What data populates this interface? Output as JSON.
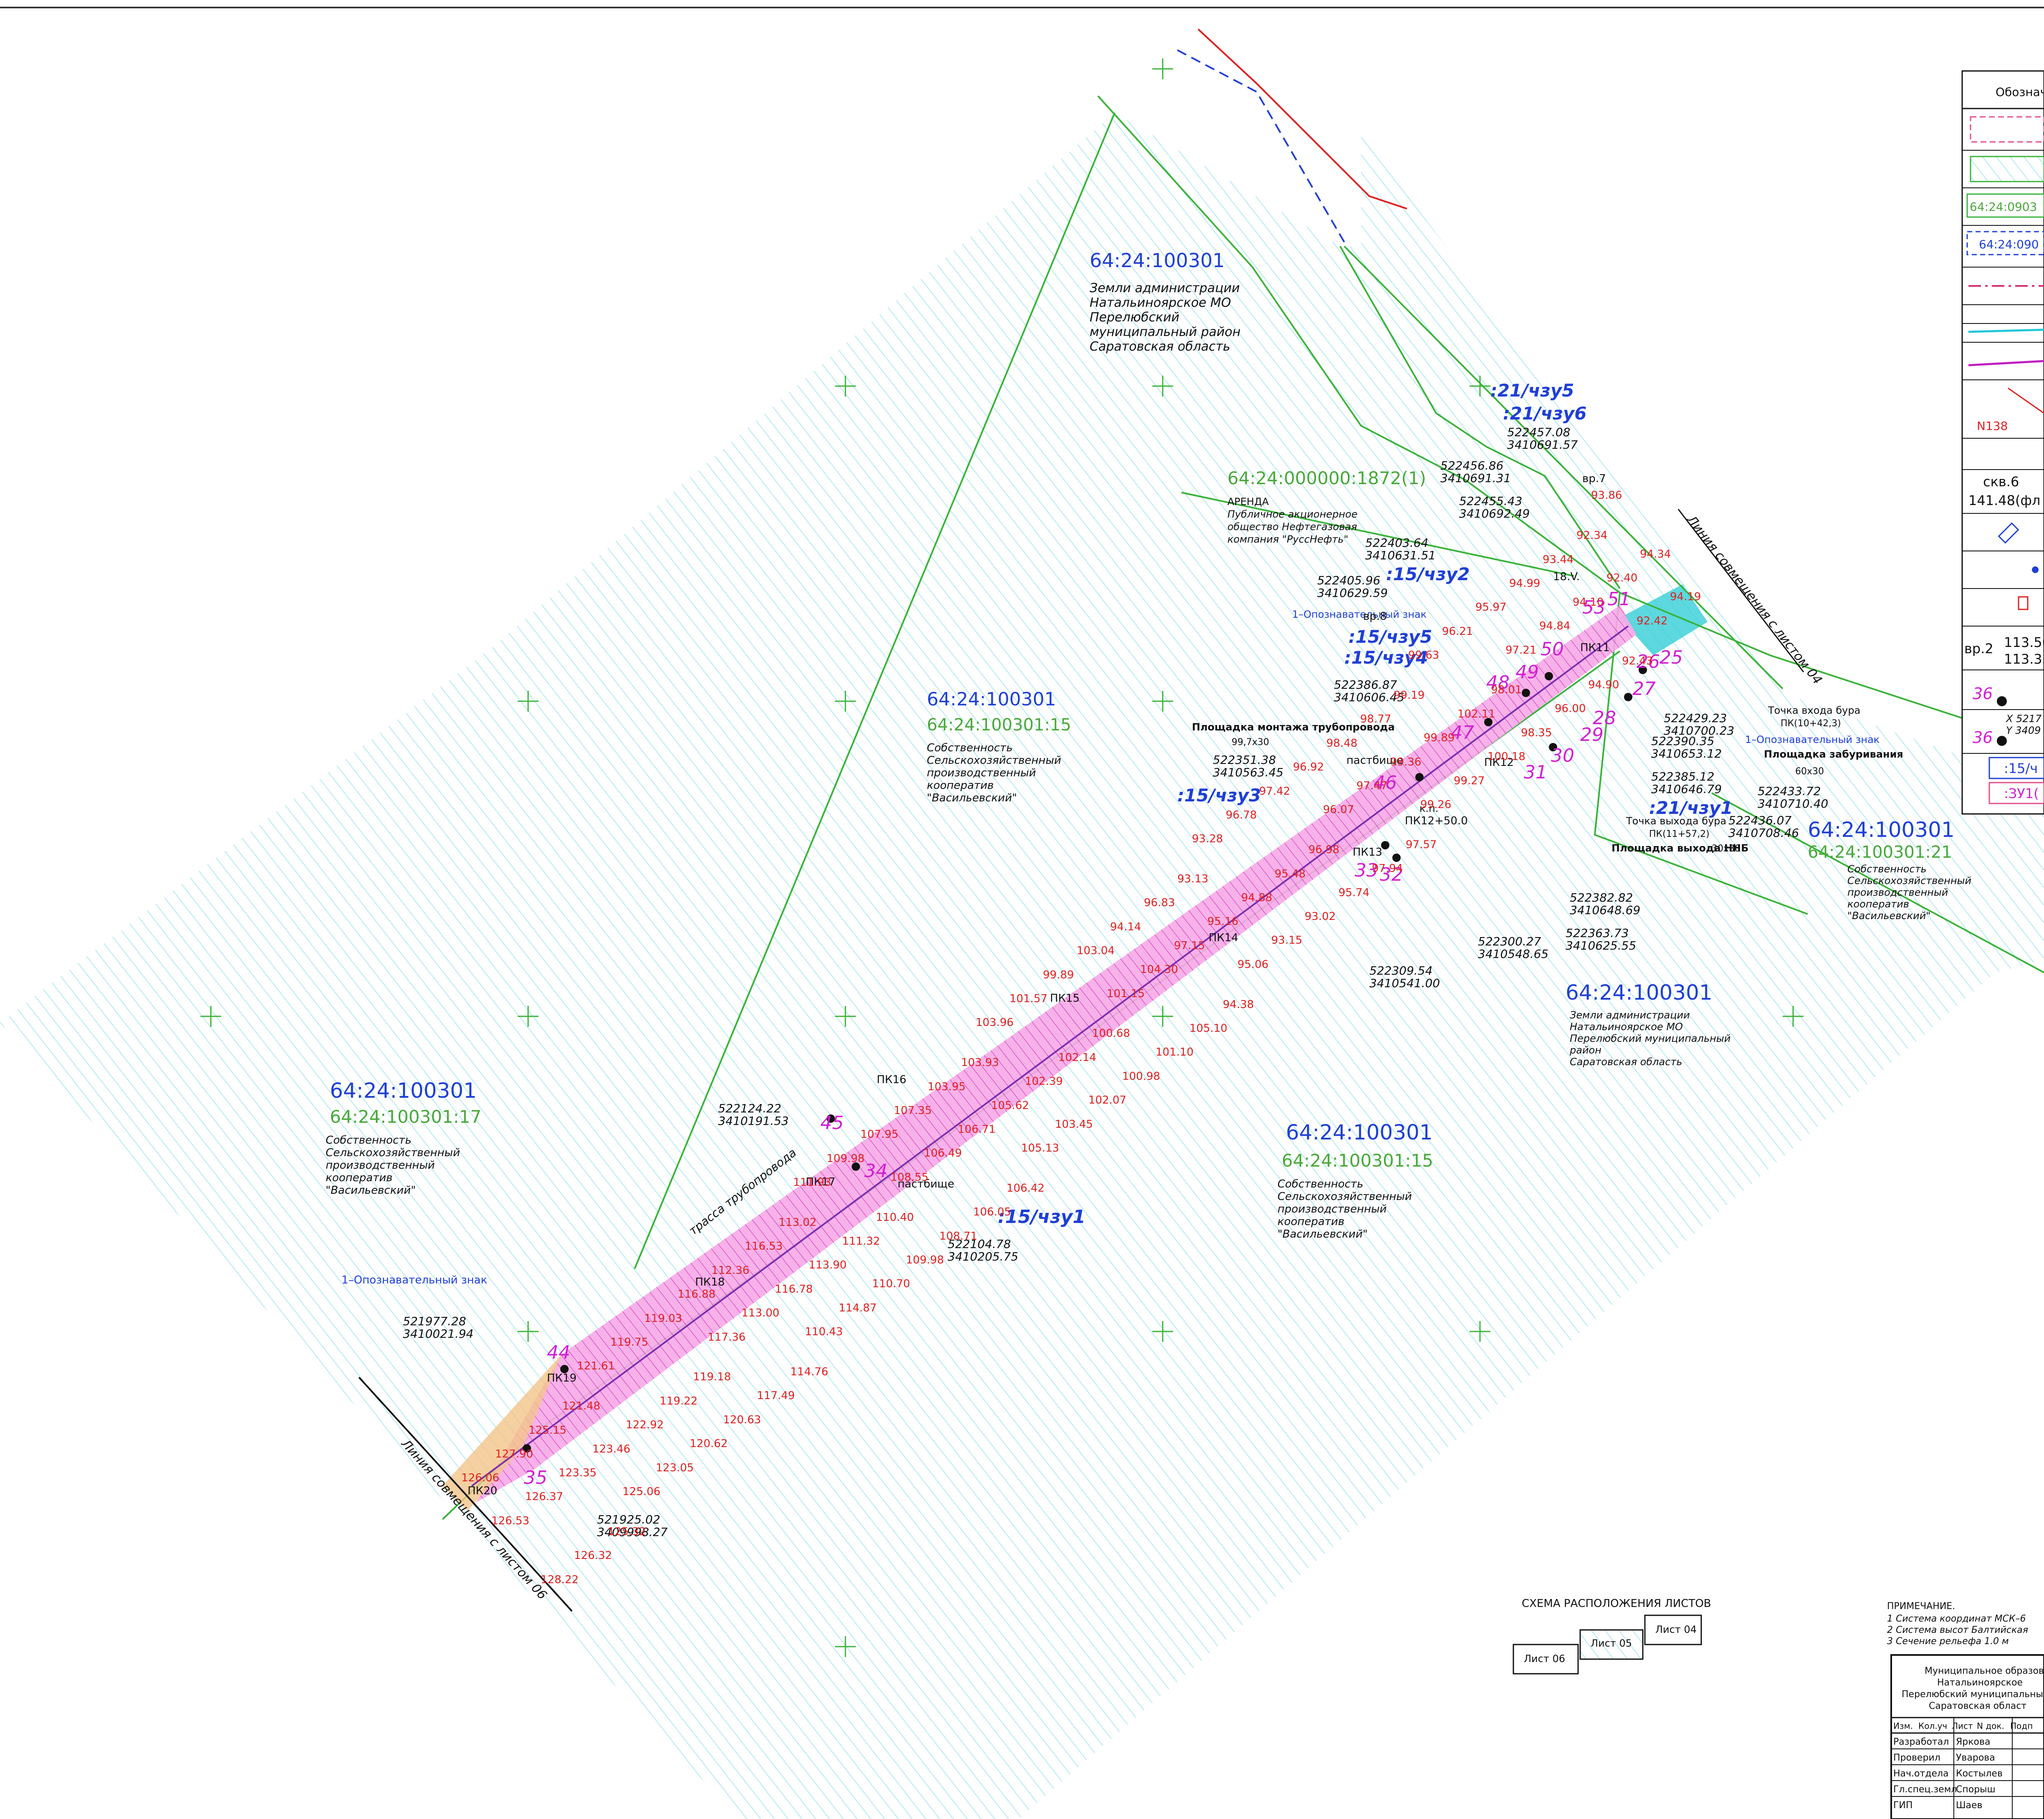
{
  "colors": {
    "background": "#ffffff",
    "hatch": "#9fe3ea",
    "parcel_line": "#3bb33b",
    "corridor": "#ec5ed6",
    "survey_point": "#111111",
    "cadastral_blue": "#1f3fd6",
    "elevation_red": "#e02020",
    "contour": "#d4a27b"
  },
  "parcels": [
    {
      "cadastral": "64:24:100301",
      "sub": "",
      "desc": [
        "Земли администрации",
        "Натальиноярское МО",
        "Перелюбский",
        "муниципальный район",
        "Саратовская область"
      ]
    },
    {
      "cadastral": "64:24:000000:1872(1)",
      "sub": "",
      "desc": [
        "АРЕНДА",
        "Публичное акционерное",
        "общество Нефтегазовая",
        "компания \"РуссНефть\""
      ]
    },
    {
      "cadastral": "64:24:100301",
      "sub": "64:24:100301:15",
      "desc": [
        "Собственность",
        "Сельскохозяйственный",
        "производственный",
        "кооператив",
        "\"Васильевский\""
      ]
    },
    {
      "cadastral": "64:24:100301",
      "sub": "64:24:100301:17",
      "desc": [
        "Собственность",
        "Сельскохозяйственный",
        "производственный",
        "кооператив",
        "\"Васильевский\""
      ]
    },
    {
      "cadastral": "64:24:100301",
      "sub": "64:24:100301:15",
      "desc": [
        "Собственность",
        "Сельскохозяйственный",
        "производственный",
        "кооператив",
        "\"Васильевский\""
      ]
    },
    {
      "cadastral": "64:24:100301",
      "sub": "64:24:100301:21",
      "desc": [
        "Собственность",
        "Сельскохозяйственный",
        "производственный",
        "кооператив",
        "\"Васильевский\""
      ]
    },
    {
      "cadastral": "64:24:100301",
      "sub": "",
      "desc": [
        "Земли администрации",
        "Натальиноярское МО",
        "Перелюбский муниципальный",
        "район",
        "Саратовская область"
      ]
    }
  ],
  "zones": [
    ":21/чзу5",
    ":21/чзу6",
    ":15/чзу2",
    ":15/чзу5",
    ":15/чзу4",
    ":15/чзу3",
    ":21/чзу1",
    ":15/чзу1"
  ],
  "survey_points": [
    {
      "n": "44",
      "x": "521977.28",
      "y": "3410021.94"
    },
    {
      "n": "35",
      "x": "521925.02",
      "y": "3409998.27"
    },
    {
      "n": "45",
      "x": "522124.22",
      "y": "3410191.53"
    },
    {
      "n": "34",
      "x": "522104.78",
      "y": "3410205.75"
    },
    {
      "n": "46",
      "x": "522351.38",
      "y": "3410563.45"
    },
    {
      "n": "47",
      "x": "522386.87",
      "y": "3410606.45"
    },
    {
      "n": "48",
      "x": "522405.96",
      "y": "3410629.59"
    },
    {
      "n": "49",
      "x": "522403.64",
      "y": "3410631.51"
    },
    {
      "n": "33",
      "x": "522309.54",
      "y": "3410541.00"
    },
    {
      "n": "32",
      "x": "522300.27",
      "y": "3410548.65"
    },
    {
      "n": "30",
      "x": "522363.73",
      "y": "3410625.55"
    },
    {
      "n": "29",
      "x": "522382.82",
      "y": "3410648.69"
    },
    {
      "n": "28",
      "x": "522385.12",
      "y": "3410646.79"
    },
    {
      "n": "27",
      "x": "522390.35",
      "y": "3410653.12"
    },
    {
      "n": "26",
      "x": "522429.23",
      "y": "3410700.23"
    },
    {
      "n": "25",
      "x": "522433.72",
      "y": "3410710.40"
    },
    {
      "n": "31",
      "x": "522436.07",
      "y": "3410708.46"
    },
    {
      "n": "52",
      "x": "522455.43",
      "y": "3410692.49"
    },
    {
      "n": "53",
      "x": "522456.86",
      "y": "3410691.31"
    },
    {
      "n": "51",
      "x": "522457.08",
      "y": "3410691.57"
    },
    {
      "n": "50",
      "x": "",
      "y": ""
    },
    {
      "n": "36",
      "x": "",
      "y": ""
    }
  ],
  "pickets": [
    "ПК11",
    "ПК12",
    "ПК12+50.0",
    "ПК13",
    "ПК14",
    "ПК15",
    "ПК16",
    "ПК17",
    "ПК18",
    "ПК19",
    "ПК20"
  ],
  "elevations": [
    "93.86",
    "94.34",
    "94.19",
    "92.34",
    "92.40",
    "92.42",
    "93.44",
    "94.10",
    "92.43",
    "94.99",
    "94.84",
    "94.90",
    "95.97",
    "97.21",
    "96.00",
    "96.21",
    "98.01",
    "98.35",
    "99.63",
    "102.11",
    "100.18",
    "99.19",
    "99.89",
    "99.27",
    "98.77",
    "99.36",
    "99.26",
    "98.48",
    "97.47",
    "97.57",
    "96.92",
    "96.07",
    "97.94",
    "97.42",
    "96.98",
    "95.74",
    "96.78",
    "95.48",
    "93.02",
    "93.28",
    "94.88",
    "93.15",
    "93.13",
    "95.16",
    "95.06",
    "96.83",
    "97.15",
    "94.38",
    "94.14",
    "104.30",
    "105.10",
    "103.04",
    "101.15",
    "101.10",
    "99.89",
    "100.68",
    "100.98",
    "101.57",
    "102.14",
    "102.07",
    "103.96",
    "102.39",
    "103.45",
    "103.93",
    "105.62",
    "105.13",
    "103.95",
    "106.71",
    "106.42",
    "107.35",
    "106.49",
    "106.05",
    "107.95",
    "108.55",
    "108.71",
    "109.98",
    "110.40",
    "109.98",
    "111.93",
    "111.32",
    "110.70",
    "113.02",
    "113.90",
    "114.87",
    "116.53",
    "116.78",
    "110.43",
    "112.36",
    "113.00",
    "114.76",
    "116.88",
    "117.36",
    "117.49",
    "119.03",
    "119.18",
    "120.63",
    "119.75",
    "119.22",
    "120.62",
    "121.61",
    "122.92",
    "123.05",
    "121.48",
    "123.46",
    "125.06",
    "125.15",
    "123.35",
    "125.32",
    "127.90",
    "126.37",
    "126.32",
    "126.06",
    "126.53",
    "128.22"
  ],
  "boreholes": [
    "вр.7",
    "вр.8",
    "18.V."
  ],
  "annotations": {
    "route": "трасса трубопровода",
    "mount_site": "Площадка монтажа трубопровода",
    "mount_size": "99,7х30",
    "drill_site": "Площадка забуривания",
    "drill_size": "60х30",
    "exit_site": "Площадка выхода ННБ",
    "exit_size": "30х30",
    "drill_entry": "Точка входа бура",
    "drill_entry_pk": "ПК(10+42,3)",
    "drill_exit": "Точка выхода бура",
    "drill_exit_pk": "ПК(11+57,2)",
    "sign": "1–Опознавательный знак",
    "pasture": "пастбище",
    "kp": "к.п.",
    "match_04": "Линия совмещения с листом 04",
    "match_06": "Линия совмещения с листом 06"
  },
  "scheme": {
    "title": "СХЕМА РАСПОЛОЖЕНИЯ ЛИСТОВ",
    "sheets": [
      "Лист 04",
      "Лист 05",
      "Лист 06"
    ]
  },
  "legend": {
    "header": "Обознач",
    "items": [
      "64:24:0903",
      "64:24:090",
      "N138",
      "скв.6",
      "141.48(фл",
      "вр.2",
      "113.50",
      "113.35",
      "36",
      "X 5217",
      "Y 3409",
      ":15/ч",
      ":ЗУ1("
    ]
  },
  "notes": {
    "title": "ПРИМЕЧАНИЕ.",
    "lines": [
      "1 Система координат МСК–6",
      "2 Система высот Балтийская",
      "3 Сечение рельефа 1.0 м"
    ]
  },
  "stamp": {
    "org": [
      "Муниципальное образова",
      "Натальиноярское",
      "Перелюбский муниципальный",
      "Саратовская област"
    ],
    "cols": [
      "Изм.",
      "Кол.уч",
      "Лист",
      "N док.",
      "Подп"
    ],
    "rows": [
      {
        "role": "Разработал",
        "name": "Яркова"
      },
      {
        "role": "Проверил",
        "name": "Уварова"
      },
      {
        "role": "Нач.отдела",
        "name": "Костылев"
      },
      {
        "role": "Гл.спец.земл",
        "name": "Спорыш"
      },
      {
        "role": "ГИП",
        "name": "Шаев"
      }
    ]
  }
}
